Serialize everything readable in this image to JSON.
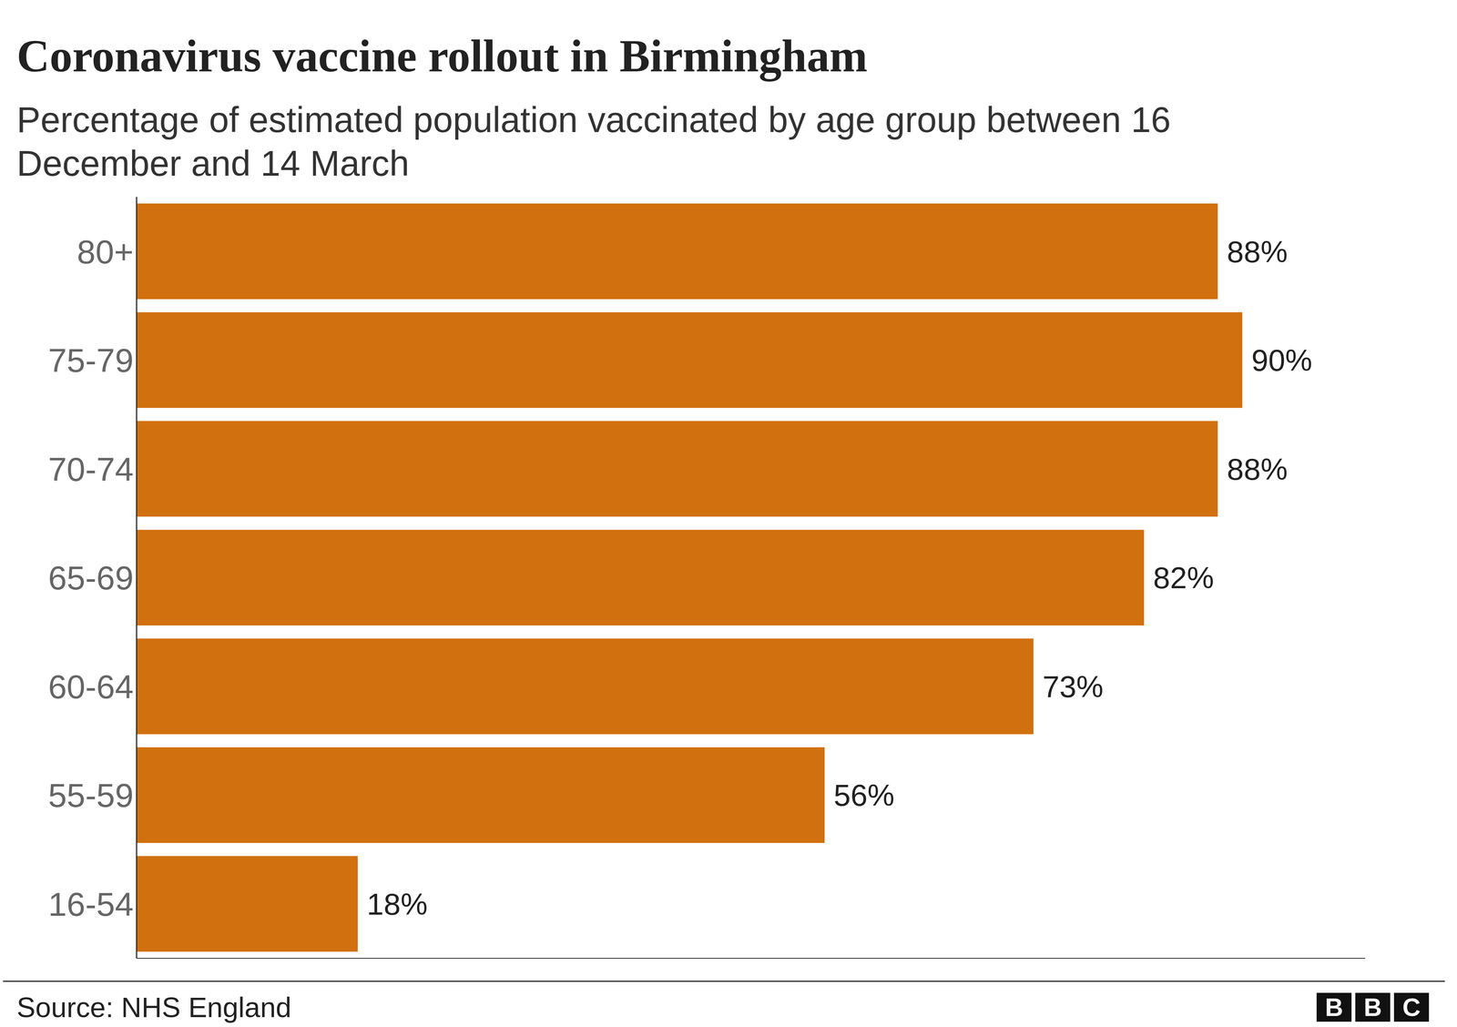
{
  "chart_data": {
    "type": "bar",
    "title": "Coronavirus vaccine rollout in Birmingham",
    "subtitle": "Percentage of estimated population vaccinated by age group between 16 December and 14 March",
    "categories": [
      "80+",
      "75-79",
      "70-74",
      "65-69",
      "60-64",
      "55-59",
      "16-54"
    ],
    "values": [
      88,
      90,
      88,
      82,
      73,
      56,
      18
    ],
    "value_labels": [
      "88%",
      "90%",
      "88%",
      "82%",
      "73%",
      "56%",
      "18%"
    ],
    "color": "#d1700f",
    "orientation": "horizontal",
    "data_labels": true,
    "xlim": [
      0,
      100
    ],
    "xticks": [],
    "tick_labels": "y",
    "grid": false,
    "source": "Source: NHS England",
    "logo": "BBC"
  }
}
